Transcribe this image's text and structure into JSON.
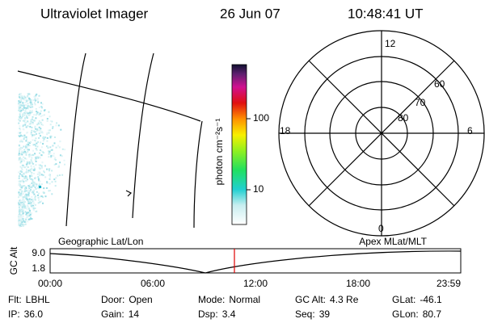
{
  "header": {
    "title": "Ultraviolet Imager",
    "date": "26 Jun 07",
    "time": "10:48:41 UT"
  },
  "colorbar": {
    "label": "photon cm⁻²s⁻¹",
    "ticks": [
      "100",
      "10"
    ]
  },
  "polar": {
    "mlt_labels": [
      "12",
      "6",
      "0",
      "18"
    ],
    "lat_labels": [
      "60",
      "70",
      "80"
    ]
  },
  "orbit": {
    "y_label": "GC Alt",
    "y_ticks": [
      "9.0",
      "1.8"
    ],
    "left_title": "Geographic Lat/Lon",
    "right_title": "Apex MLat/MLT",
    "x_ticks": [
      "00:00",
      "06:00",
      "12:00",
      "18:00",
      "23:59"
    ]
  },
  "footer": {
    "rows": [
      [
        {
          "label": "Flt:",
          "value": "LBHL"
        },
        {
          "label": "Door:",
          "value": "Open"
        },
        {
          "label": "Mode:",
          "value": "Normal"
        },
        {
          "label": "GC Alt:",
          "value": "4.3 Re"
        },
        {
          "label": "GLat:",
          "value": "-46.1"
        }
      ],
      [
        {
          "label": "IP:",
          "value": "36.0"
        },
        {
          "label": "Gain:",
          "value": "14"
        },
        {
          "label": "Dsp:",
          "value": "3.4"
        },
        {
          "label": "Seq:",
          "value": "39"
        },
        {
          "label": "GLon:",
          "value": "80.7"
        }
      ]
    ]
  }
}
